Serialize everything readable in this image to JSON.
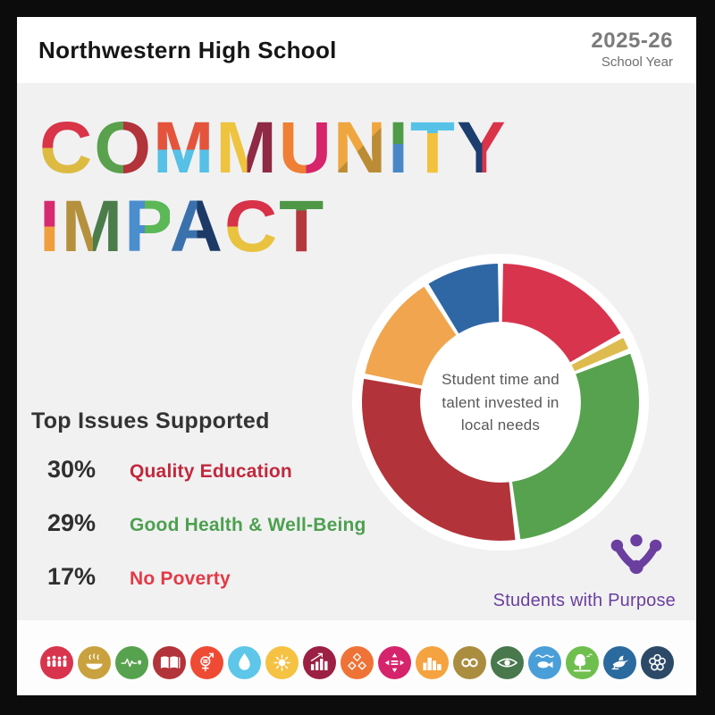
{
  "header": {
    "school_name": "Northwestern High School",
    "year": "2025-26",
    "year_label": "School Year"
  },
  "title": {
    "words": [
      {
        "word": "COMMUNITY",
        "letters": [
          {
            "ch": "C",
            "a": "#d93448",
            "b": "#ddba42",
            "dir": "to bottom",
            "split": 50
          },
          {
            "ch": "O",
            "a": "#5aa14d",
            "b": "#b23339",
            "dir": "to right",
            "split": 50
          },
          {
            "ch": "M",
            "a": "#e4543c",
            "b": "#56c0e6",
            "dir": "to bottom",
            "split": 52
          },
          {
            "ch": "M",
            "a": "#eec33f",
            "b": "#8e2a44",
            "dir": "to right",
            "split": 50
          },
          {
            "ch": "U",
            "a": "#ee7f35",
            "b": "#d6256b",
            "dir": "to right",
            "split": 50
          },
          {
            "ch": "N",
            "a": "#efa63f",
            "b": "#bb8c35",
            "dir": "135deg",
            "split": 50
          },
          {
            "ch": "I",
            "a": "#4f9b48",
            "b": "#4a87c6",
            "dir": "to bottom",
            "split": 45
          },
          {
            "ch": "T",
            "a": "#56c2e8",
            "b": "#f2c13d",
            "dir": "to bottom",
            "split": 32
          },
          {
            "ch": "Y",
            "a": "#1c3e6e",
            "b": "#da3449",
            "dir": "to right",
            "split": 50
          }
        ]
      },
      {
        "word": "IMPACT",
        "letters": [
          {
            "ch": "I",
            "a": "#d62a71",
            "b": "#f09f3f",
            "dir": "to bottom",
            "split": 50
          },
          {
            "ch": "M",
            "a": "#b5913d",
            "b": "#4b7d4b",
            "dir": "to right",
            "split": 50
          },
          {
            "ch": "P",
            "a": "#4a8ecd",
            "b": "#5cb857",
            "dir": "to right",
            "split": 45
          },
          {
            "ch": "A",
            "a": "#3a71ad",
            "b": "#1d3a66",
            "dir": "to right",
            "split": 50
          },
          {
            "ch": "C",
            "a": "#d73248",
            "b": "#e9c23f",
            "dir": "to bottom",
            "split": 50
          },
          {
            "ch": "T",
            "a": "#4e9747",
            "b": "#b5383d",
            "dir": "to bottom",
            "split": 30
          }
        ]
      }
    ]
  },
  "chart_data": {
    "type": "pie",
    "subtype": "donut",
    "title": "Student time and talent invested in local needs",
    "center_label": "Student time and talent invested in local needs",
    "slices": [
      {
        "label": "No Poverty",
        "value": 17,
        "color": "#d8344e"
      },
      {
        "label": "unlabeled gold",
        "value": 2,
        "color": "#ddbb4e"
      },
      {
        "label": "Good Health & Well-Being",
        "value": 29,
        "color": "#57a24e"
      },
      {
        "label": "Quality Education",
        "value": 30,
        "color": "#b23339"
      },
      {
        "label": "unlabeled orange",
        "value": 13,
        "color": "#f0a54e"
      },
      {
        "label": "unlabeled blue",
        "value": 9,
        "color": "#2f67a5"
      }
    ],
    "start_angle_deg": 0,
    "pad_angle_deg": 2.2,
    "inner_radius_ratio": 0.58,
    "legend_position": "none",
    "backdrop_color": "#ffffff"
  },
  "top_issues": {
    "heading": "Top Issues Supported",
    "items": [
      {
        "pct": "30%",
        "label": "Quality Education",
        "color": "#c2283c"
      },
      {
        "pct": "29%",
        "label": "Good Health & Well-Being",
        "color": "#4da04f"
      },
      {
        "pct": "17%",
        "label": "No Poverty",
        "color": "#e23a45"
      }
    ]
  },
  "brand": {
    "name": "Students with Purpose",
    "color": "#6b3fa0"
  },
  "sdg_icons": [
    {
      "name": "sdg-no-poverty",
      "glyph": "people",
      "color": "#d8344e"
    },
    {
      "name": "sdg-zero-hunger",
      "glyph": "bowl",
      "color": "#c9a23f"
    },
    {
      "name": "sdg-good-health",
      "glyph": "heartbeat",
      "color": "#57a24e"
    },
    {
      "name": "sdg-quality-education",
      "glyph": "book",
      "color": "#b23339"
    },
    {
      "name": "sdg-gender-equality",
      "glyph": "gender",
      "color": "#ef4a33"
    },
    {
      "name": "sdg-clean-water",
      "glyph": "drop",
      "color": "#5ec6e8"
    },
    {
      "name": "sdg-clean-energy",
      "glyph": "sun",
      "color": "#f5c243"
    },
    {
      "name": "sdg-decent-work",
      "glyph": "chart",
      "color": "#9c2043"
    },
    {
      "name": "sdg-industry-innovation",
      "glyph": "cubes",
      "color": "#ef7336"
    },
    {
      "name": "sdg-reduced-inequalities",
      "glyph": "arrows",
      "color": "#d6246c"
    },
    {
      "name": "sdg-sustainable-cities",
      "glyph": "city",
      "color": "#f5a340"
    },
    {
      "name": "sdg-responsible-consumption",
      "glyph": "infinity",
      "color": "#ab8d3f"
    },
    {
      "name": "sdg-climate-action",
      "glyph": "eye",
      "color": "#48784b"
    },
    {
      "name": "sdg-life-below-water",
      "glyph": "fish",
      "color": "#4a9fd8"
    },
    {
      "name": "sdg-life-on-land",
      "glyph": "tree",
      "color": "#6fbf4e"
    },
    {
      "name": "sdg-peace-justice",
      "glyph": "dove",
      "color": "#2a6a9e"
    },
    {
      "name": "sdg-partnerships",
      "glyph": "rings",
      "color": "#2c4a68"
    }
  ]
}
